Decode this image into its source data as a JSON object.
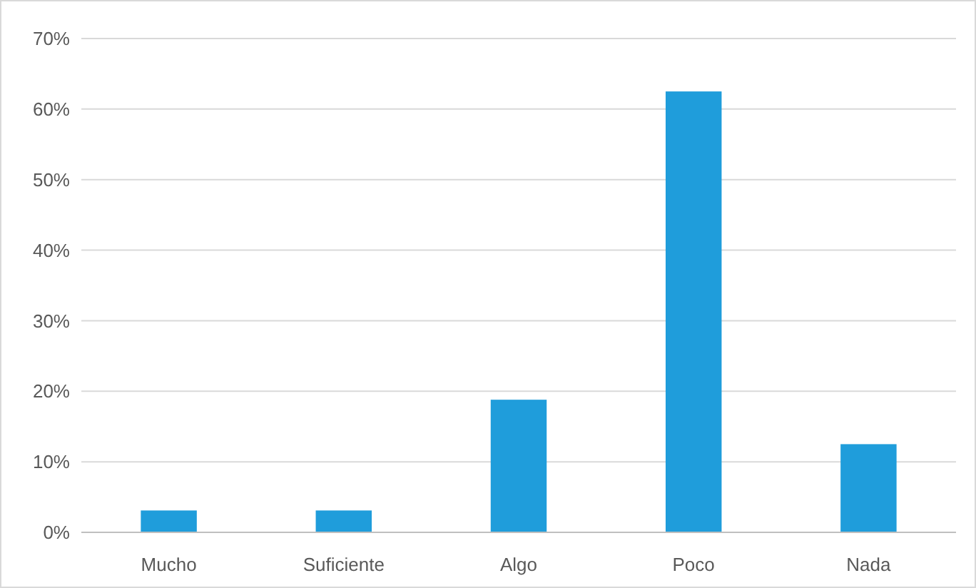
{
  "chart_data": {
    "type": "bar",
    "categories": [
      "Mucho",
      "Suficiente",
      "Algo",
      "Poco",
      "Nada"
    ],
    "values": [
      3.1,
      3.1,
      18.8,
      62.5,
      12.5
    ],
    "color": "#1f9ddb",
    "ylim": [
      0,
      70
    ],
    "yticks": [
      {
        "value": 0,
        "label": "0%"
      },
      {
        "value": 10,
        "label": "10%"
      },
      {
        "value": 20,
        "label": "20%"
      },
      {
        "value": 30,
        "label": "30%"
      },
      {
        "value": 40,
        "label": "40%"
      },
      {
        "value": 50,
        "label": "50%"
      },
      {
        "value": 60,
        "label": "60%"
      },
      {
        "value": 70,
        "label": "70%"
      }
    ],
    "grid": "y"
  }
}
